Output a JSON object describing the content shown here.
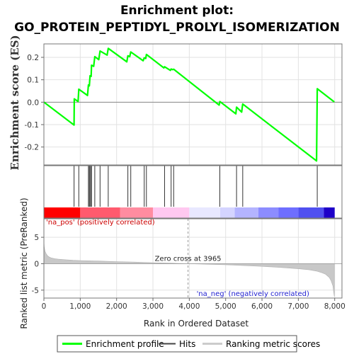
{
  "chart_data": {
    "type": "line",
    "title_line1": "Enrichment plot:",
    "title_line2": "GO_PROTEIN_PEPTIDYL_PROLYL_ISOMERIZATION",
    "ylabel_top": "Enrichment score (ES)",
    "ylabel_bottom": "Ranked list metric (PreRanked)",
    "xlabel": "Rank in Ordered Dataset",
    "xlim": [
      0,
      8200
    ],
    "xticks": [
      0,
      1000,
      2000,
      3000,
      4000,
      5000,
      6000,
      7000,
      8000
    ],
    "xtick_labels": [
      "0",
      "1,000",
      "2,000",
      "3,000",
      "4,000",
      "5,000",
      "6,000",
      "7,000",
      "8,000"
    ],
    "es_ylim": [
      -0.28,
      0.26
    ],
    "es_yticks": [
      -0.2,
      -0.1,
      0.0,
      0.1,
      0.2
    ],
    "es_ytick_labels": [
      "-0.2",
      "-0.1",
      "0.0",
      "0.1",
      "0.2"
    ],
    "metric_ylim": [
      -6.5,
      8.5
    ],
    "metric_yticks": [
      -5,
      0,
      5
    ],
    "metric_ytick_labels": [
      "-5",
      "0",
      "5"
    ],
    "enrichment_profile": {
      "name": "Enrichment profile",
      "color": "#00ff00",
      "x": [
        0,
        830,
        835,
        940,
        960,
        1200,
        1225,
        1250,
        1270,
        1300,
        1310,
        1370,
        1400,
        1510,
        1545,
        1740,
        1770,
        2280,
        2310,
        2360,
        2390,
        2730,
        2760,
        2800,
        2820,
        3300,
        3320,
        3480,
        3500,
        3540,
        3570,
        4820,
        4840,
        5280,
        5300,
        5440,
        5470,
        7500,
        7520,
        7990
      ],
      "y": [
        0.0,
        -0.102,
        0.015,
        0.003,
        0.058,
        0.03,
        0.077,
        0.073,
        0.118,
        0.115,
        0.165,
        0.16,
        0.203,
        0.19,
        0.228,
        0.21,
        0.24,
        0.18,
        0.207,
        0.203,
        0.224,
        0.185,
        0.198,
        0.195,
        0.213,
        0.153,
        0.158,
        0.142,
        0.148,
        0.145,
        0.147,
        -0.013,
        0.003,
        -0.052,
        -0.022,
        -0.044,
        -0.008,
        -0.262,
        0.06,
        0.001
      ]
    },
    "hits": {
      "name": "Hits",
      "x": [
        830,
        960,
        1225,
        1250,
        1270,
        1300,
        1310,
        1400,
        1545,
        1770,
        2310,
        2390,
        2760,
        2820,
        3320,
        3500,
        3570,
        4840,
        5300,
        5470,
        7520
      ]
    },
    "ranking_metric": {
      "name": "Ranking metric scores",
      "x": [
        0,
        10,
        30,
        60,
        100,
        150,
        200,
        300,
        400,
        600,
        800,
        1000,
        1500,
        2000,
        2500,
        3000,
        3500,
        3965,
        4500,
        5000,
        5500,
        6000,
        6500,
        7000,
        7300,
        7500,
        7650,
        7750,
        7850,
        7900,
        7950,
        7970,
        7990
      ],
      "y": [
        4.3,
        3.2,
        2.4,
        1.9,
        1.5,
        1.25,
        1.1,
        0.95,
        0.85,
        0.75,
        0.65,
        0.6,
        0.5,
        0.4,
        0.3,
        0.2,
        0.1,
        0.0,
        -0.1,
        -0.2,
        -0.35,
        -0.5,
        -0.7,
        -0.95,
        -1.15,
        -1.4,
        -1.7,
        -2.0,
        -2.6,
        -3.2,
        -4.2,
        -5.2,
        -6.2
      ]
    },
    "zero_cross": 3965,
    "zero_cross_label": "Zero cross at 3965",
    "pos_label": "'na_pos' (positively correlated)",
    "neg_label": "'na_neg' (negatively correlated)",
    "colorbar": [
      {
        "from": 0,
        "to": 1000,
        "color": "#ff0000"
      },
      {
        "from": 1000,
        "to": 2100,
        "color": "#ff5a6e"
      },
      {
        "from": 2100,
        "to": 3000,
        "color": "#ff8ca0"
      },
      {
        "from": 3000,
        "to": 4000,
        "color": "#ffc8f0"
      },
      {
        "from": 4000,
        "to": 4850,
        "color": "#e8e8ff"
      },
      {
        "from": 4850,
        "to": 5250,
        "color": "#d4d4ff"
      },
      {
        "from": 5250,
        "to": 5900,
        "color": "#b4b4ff"
      },
      {
        "from": 5900,
        "to": 6450,
        "color": "#8c8cff"
      },
      {
        "from": 6450,
        "to": 7000,
        "color": "#6e6eff"
      },
      {
        "from": 7000,
        "to": 7700,
        "color": "#5050f0"
      },
      {
        "from": 7700,
        "to": 8000,
        "color": "#1e00c8"
      }
    ],
    "legend": [
      {
        "label": "Enrichment profile",
        "color": "#00ff00",
        "kind": "line-thick"
      },
      {
        "label": "Hits",
        "color": "#444444",
        "kind": "line-thin"
      },
      {
        "label": "Ranking metric scores",
        "color": "#cccccc",
        "kind": "line-thick"
      }
    ],
    "grid": true
  }
}
